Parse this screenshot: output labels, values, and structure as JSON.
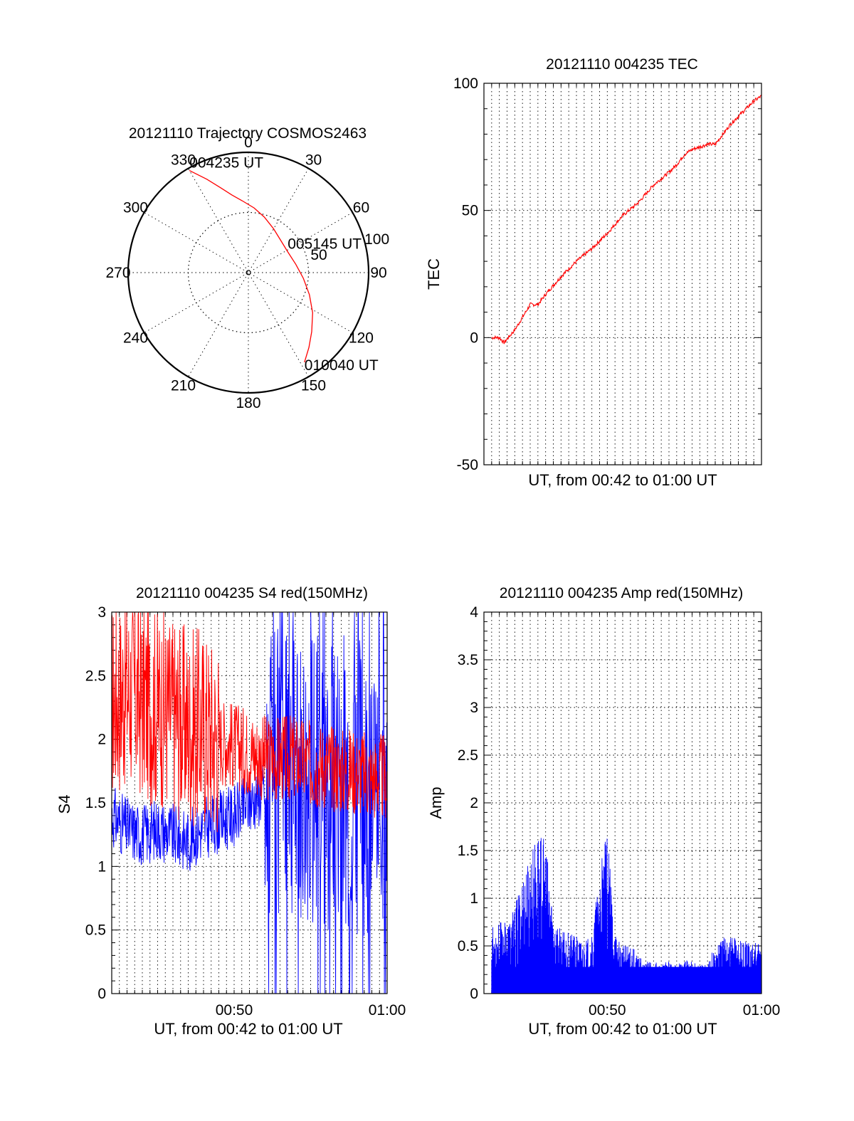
{
  "chart_data": [
    {
      "type": "polar",
      "title": "20121110 Trajectory COSMOS2463",
      "azimuth_labels": [
        "0",
        "30",
        "60",
        "90",
        "120",
        "150",
        "180",
        "210",
        "240",
        "270",
        "300",
        "330"
      ],
      "elevation_ring_labels": [
        "100",
        "50"
      ],
      "annotations": [
        {
          "text": "004235 UT",
          "azimuth_deg": 330,
          "zenith_radius": 98
        },
        {
          "text": "005145 UT",
          "azimuth_deg": 62,
          "zenith_radius": 37
        },
        {
          "text": "010040 UT",
          "azimuth_deg": 148,
          "zenith_radius": 88
        }
      ],
      "series": [
        {
          "color": "#ff0000",
          "points": [
            [
              330,
              98
            ],
            [
              336,
              85
            ],
            [
              342,
              74
            ],
            [
              348,
              66
            ],
            [
              355,
              60
            ],
            [
              5,
              54
            ],
            [
              16,
              48
            ],
            [
              30,
              42
            ],
            [
              45,
              38
            ],
            [
              62,
              37
            ],
            [
              80,
              40
            ],
            [
              96,
              46
            ],
            [
              110,
              54
            ],
            [
              122,
              63
            ],
            [
              133,
              72
            ],
            [
              141,
              80
            ],
            [
              148,
              88
            ]
          ]
        }
      ]
    },
    {
      "type": "line",
      "title": "20121110 004235 TEC",
      "xlabel": "UT, from 00:42 to 01:00 UT",
      "ylabel": "TEC",
      "xlim": [
        42.0,
        60.0
      ],
      "ylim": [
        -50,
        100
      ],
      "yticks": [
        "100",
        "50",
        "0",
        "-50"
      ],
      "grid": true,
      "series": [
        {
          "color": "#ff0000",
          "x": [
            42.5,
            43.0,
            43.3,
            44.0,
            45.0,
            45.5,
            46.0,
            47.0,
            48.0,
            49.0,
            50.0,
            51.0,
            52.0,
            53.0,
            54.0,
            54.5,
            55.0,
            55.5,
            56.0,
            56.5,
            57.0,
            57.5,
            58.0,
            58.5,
            59.0,
            59.5,
            60.0
          ],
          "y": [
            0,
            0,
            -2,
            3,
            13,
            13,
            17,
            24,
            30,
            35,
            41,
            48,
            53,
            60,
            65,
            68,
            72,
            74,
            75,
            76,
            76,
            80,
            84,
            87,
            90,
            93,
            95
          ]
        }
      ]
    },
    {
      "type": "line",
      "title": "20121110 004235 S4 red(150MHz)",
      "xlabel": "UT, from 00:42 to 01:00 UT",
      "ylabel": "S4",
      "xlim": [
        42.0,
        60.0
      ],
      "ylim": [
        0,
        3
      ],
      "yticks": [
        "3",
        "2.5",
        "2",
        "1.5",
        "1",
        "0.5",
        "0"
      ],
      "xticks": [
        {
          "value": 50,
          "label": "00:50"
        },
        {
          "value": 60,
          "label": "01:00"
        }
      ],
      "grid": true,
      "series": [
        {
          "color": "#ff0000",
          "x": [
            42.0,
            43.0,
            44.0,
            45.0,
            46.0,
            47.0,
            48.0,
            49.0,
            50.0,
            51.0,
            52.0,
            53.0,
            54.0,
            55.0,
            56.0,
            57.0,
            58.0,
            59.0,
            60.0
          ],
          "y": [
            2.3,
            2.4,
            2.3,
            2.25,
            2.2,
            2.1,
            2.1,
            2.0,
            1.95,
            1.9,
            1.85,
            1.85,
            1.85,
            1.8,
            1.8,
            1.75,
            1.75,
            1.7,
            1.7
          ]
        },
        {
          "color": "#0000ff",
          "x": [
            42.0,
            43.0,
            44.0,
            45.0,
            46.0,
            47.0,
            48.0,
            49.0,
            50.0,
            51.0,
            52.0,
            53.0,
            54.0,
            55.0,
            56.0,
            57.0,
            58.0,
            59.0,
            60.0
          ],
          "y": [
            1.4,
            1.3,
            1.25,
            1.3,
            1.25,
            1.2,
            1.3,
            1.35,
            1.4,
            1.5,
            1.6,
            1.7,
            1.7,
            1.75,
            1.7,
            1.7,
            1.65,
            1.6,
            1.6
          ]
        }
      ]
    },
    {
      "type": "bar",
      "title": "20121110 004235 Amp red(150MHz)",
      "xlabel": "UT, from 00:42 to 01:00 UT",
      "ylabel": "Amp",
      "xlim": [
        42.0,
        60.0
      ],
      "ylim": [
        0,
        4
      ],
      "yticks": [
        "4",
        "3.5",
        "3",
        "2.5",
        "2",
        "1.5",
        "1",
        "0.5",
        "0"
      ],
      "xticks": [
        {
          "value": 50,
          "label": "00:50"
        },
        {
          "value": 60,
          "label": "01:00"
        }
      ],
      "grid": true,
      "series": [
        {
          "color": "#0000ff",
          "x": [
            42.5,
            43.0,
            43.5,
            44.0,
            44.5,
            45.0,
            45.5,
            46.0,
            46.5,
            47.0,
            47.5,
            48.0,
            48.5,
            49.0,
            49.5,
            50.0,
            50.5,
            51.0,
            51.5,
            52.0,
            52.5,
            53.0,
            53.5,
            54.0,
            54.5,
            55.0,
            55.5,
            56.0,
            56.5,
            57.0,
            57.5,
            58.0,
            58.5,
            59.0,
            59.5,
            60.0
          ],
          "y": [
            0.7,
            0.75,
            0.75,
            0.9,
            1.25,
            1.45,
            1.7,
            1.6,
            0.85,
            0.65,
            0.65,
            0.6,
            0.55,
            0.6,
            1.3,
            1.7,
            0.65,
            0.5,
            0.55,
            0.4,
            0.35,
            0.35,
            0.3,
            0.35,
            0.3,
            0.35,
            0.35,
            0.3,
            0.35,
            0.5,
            0.6,
            0.65,
            0.6,
            0.55,
            0.55,
            0.5
          ]
        }
      ]
    }
  ]
}
